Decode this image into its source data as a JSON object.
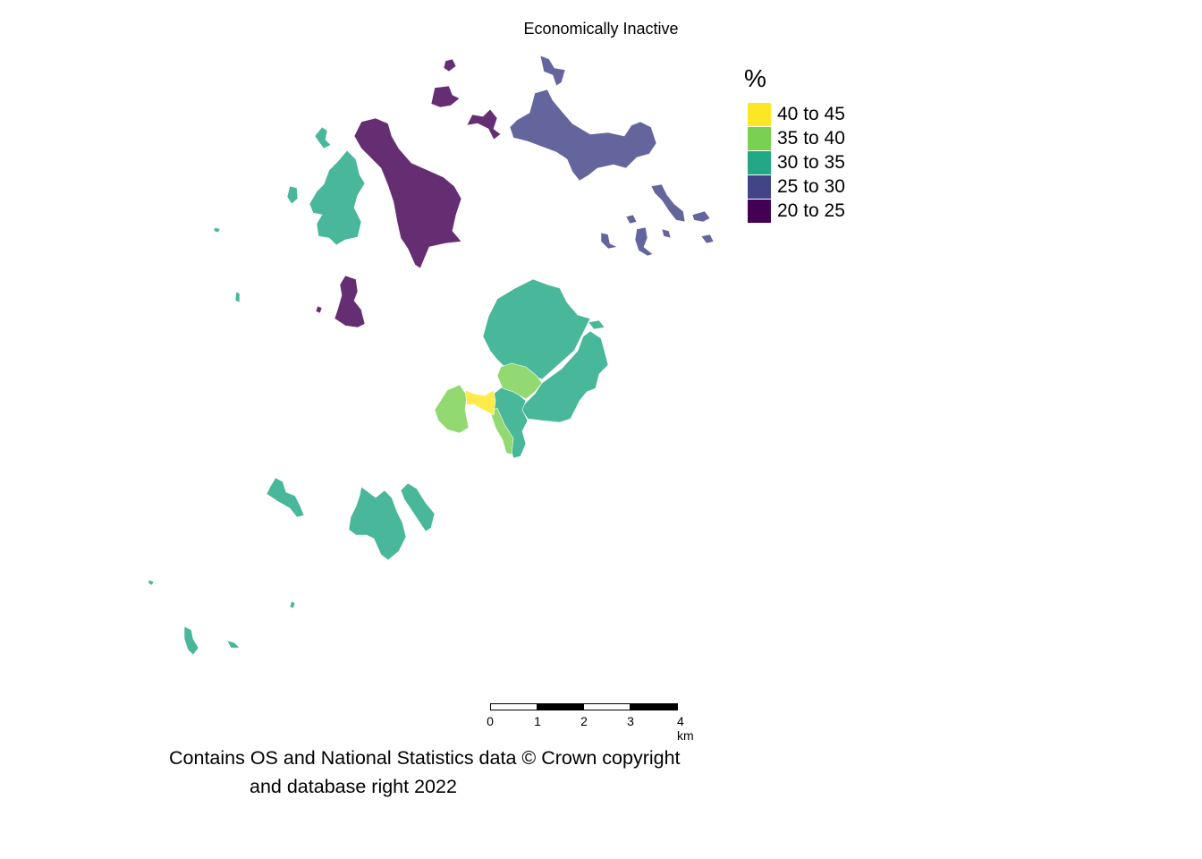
{
  "title": "Economically Inactive",
  "legend": {
    "title": "%",
    "items": [
      {
        "label": "40 to 45",
        "color": "#FDE725"
      },
      {
        "label": "35 to 40",
        "color": "#7AD151"
      },
      {
        "label": "30 to 35",
        "color": "#22A884"
      },
      {
        "label": "25 to 30",
        "color": "#414487"
      },
      {
        "label": "20 to 25",
        "color": "#440154"
      }
    ]
  },
  "map_regions": [
    {
      "name": "bryher",
      "class": "30 to 35"
    },
    {
      "name": "tresco",
      "class": "20 to 25"
    },
    {
      "name": "samson",
      "class": "20 to 25"
    },
    {
      "name": "st-martins",
      "class": "25 to 30"
    },
    {
      "name": "eastern-isles",
      "class": "25 to 30"
    },
    {
      "name": "st-marys-north",
      "class": "30 to 35"
    },
    {
      "name": "st-marys-east",
      "class": "30 to 35"
    },
    {
      "name": "st-marys-south",
      "class": "30 to 35"
    },
    {
      "name": "st-marys-garrison",
      "class": "35 to 40"
    },
    {
      "name": "st-marys-centre",
      "class": "35 to 40"
    },
    {
      "name": "st-marys-strip",
      "class": "35 to 40"
    },
    {
      "name": "hugh-town",
      "class": "40 to 45"
    },
    {
      "name": "st-agnes",
      "class": "30 to 35"
    },
    {
      "name": "annet",
      "class": "30 to 35"
    },
    {
      "name": "western-rocks",
      "class": "30 to 35"
    }
  ],
  "scalebar": {
    "ticks": [
      "0",
      "1",
      "2",
      "3",
      "4 km"
    ]
  },
  "attribution": {
    "line1": "Contains OS and National Statistics data © Crown copyright",
    "line2": "and database right 2022"
  }
}
